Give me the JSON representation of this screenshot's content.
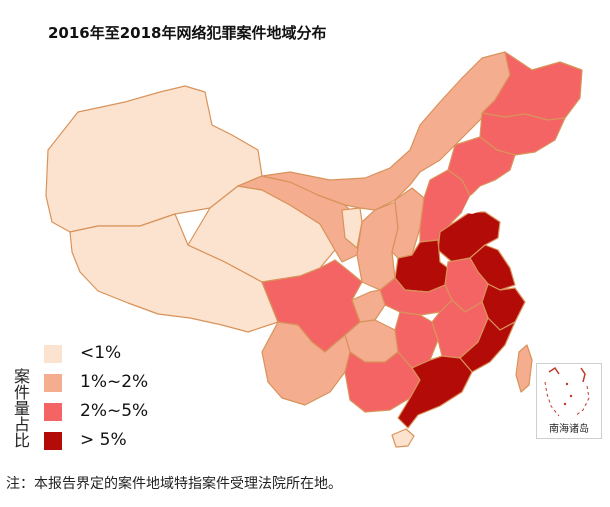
{
  "title": "2016年至2018年网络犯罪案件地域分布",
  "legend": {
    "title": "案件量占比",
    "items": [
      {
        "label": "<1%",
        "color": "#fbe3cf"
      },
      {
        "label": "1%~2%",
        "color": "#f4ad8f"
      },
      {
        "label": "2%~5%",
        "color": "#f46464"
      },
      {
        "label": "> 5%",
        "color": "#b30c08"
      }
    ]
  },
  "inset": {
    "label": "南海诸岛"
  },
  "note": "注：本报告界定的案件地域特指案件受理法院所在地。",
  "colors": {
    "lt1": "#fbe3cf",
    "r1to2": "#f4ad8f",
    "r2to5": "#f46464",
    "gt5": "#b30c08",
    "border": "#d9935a"
  }
}
